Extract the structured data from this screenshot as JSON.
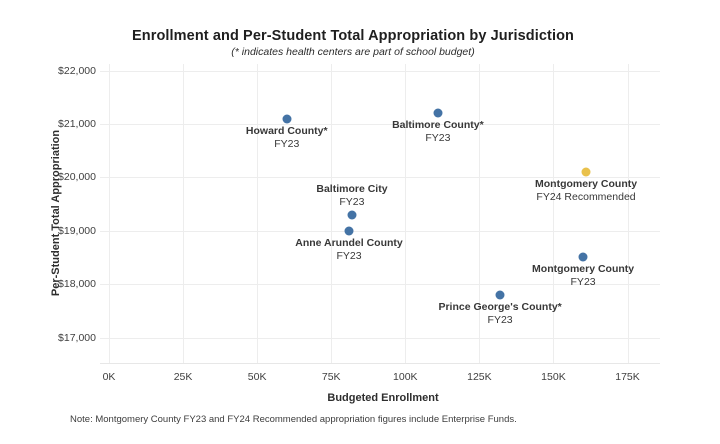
{
  "chart_data": {
    "type": "scatter",
    "title": "Enrollment and Per-Student Total Appropriation by Jurisdiction",
    "subtitle": "(* indicates health centers are part of school budget)",
    "xlabel": "Budgeted Enrollment",
    "ylabel": "Per-Student Total Appropriation",
    "grid": true,
    "legend": "none",
    "xlim_thousands": [
      0,
      175
    ],
    "ylim": [
      16500,
      22200
    ],
    "x_ticks": [
      {
        "value": 0,
        "label": "0K"
      },
      {
        "value": 25,
        "label": "25K"
      },
      {
        "value": 50,
        "label": "50K"
      },
      {
        "value": 75,
        "label": "75K"
      },
      {
        "value": 100,
        "label": "100K"
      },
      {
        "value": 125,
        "label": "125K"
      },
      {
        "value": 150,
        "label": "150K"
      },
      {
        "value": 175,
        "label": "175K"
      }
    ],
    "y_ticks": [
      {
        "value": 17000,
        "label": "$17,000"
      },
      {
        "value": 18000,
        "label": "$18,000"
      },
      {
        "value": 19000,
        "label": "$19,000"
      },
      {
        "value": 20000,
        "label": "$20,000"
      },
      {
        "value": 21000,
        "label": "$21,000"
      },
      {
        "value": 22000,
        "label": "$22,000"
      }
    ],
    "points": [
      {
        "name": "Howard County*",
        "fy": "FY23",
        "enrollment_thousands": 60,
        "per_student_appropriation": 21100,
        "color": "#4473a5",
        "label_position": "below"
      },
      {
        "name": "Baltimore County*",
        "fy": "FY23",
        "enrollment_thousands": 111,
        "per_student_appropriation": 21200,
        "color": "#4473a5",
        "label_position": "below"
      },
      {
        "name": "Baltimore City",
        "fy": "FY23",
        "enrollment_thousands": 82,
        "per_student_appropriation": 19300,
        "color": "#4473a5",
        "label_position": "above"
      },
      {
        "name": "Anne Arundel County",
        "fy": "FY23",
        "enrollment_thousands": 81,
        "per_student_appropriation": 19000,
        "color": "#4473a5",
        "label_position": "below"
      },
      {
        "name": "Montgomery County",
        "fy": "FY24 Recommended",
        "enrollment_thousands": 161,
        "per_student_appropriation": 20100,
        "color": "#e9c14b",
        "label_position": "below"
      },
      {
        "name": "Montgomery County",
        "fy": "FY23",
        "enrollment_thousands": 160,
        "per_student_appropriation": 18500,
        "color": "#4473a5",
        "label_position": "below"
      },
      {
        "name": "Prince George's County*",
        "fy": "FY23",
        "enrollment_thousands": 132,
        "per_student_appropriation": 17800,
        "color": "#4473a5",
        "label_position": "below"
      }
    ],
    "colors": {
      "default_point": "#4473a5",
      "highlight_point": "#e9c14b",
      "gridline": "#ededed"
    },
    "note": "Note: Montgomery County FY23 and FY24 Recommended appropriation figures include Enterprise Funds."
  }
}
